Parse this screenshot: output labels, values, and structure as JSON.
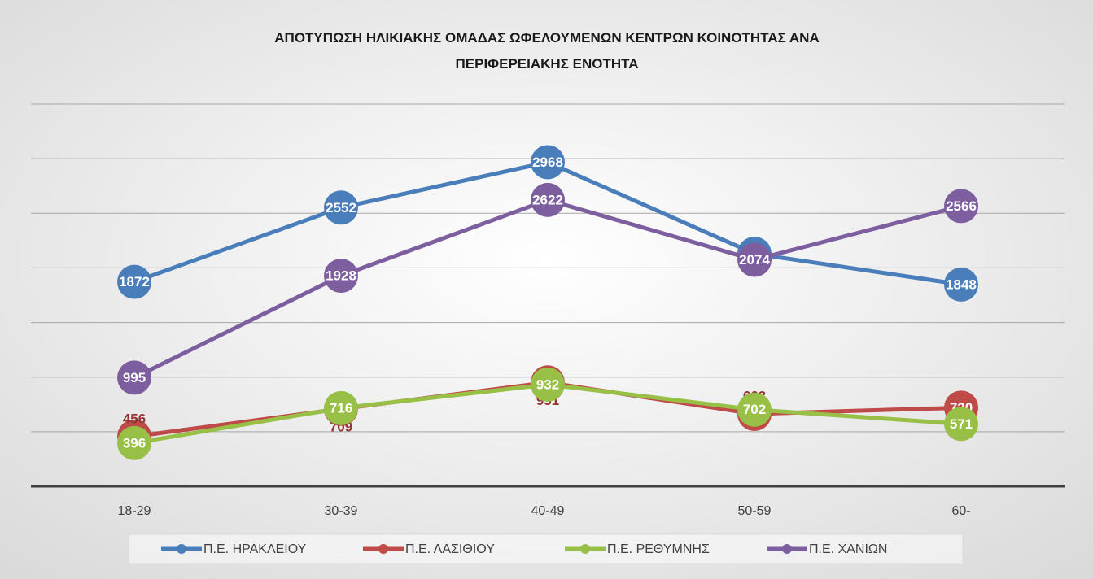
{
  "chart_data": {
    "type": "line",
    "title": "ΑΠΟΤΥΠΩΣΗ ΗΛΙΚΙΑΚΗΣ ΟΜΑΔΑΣ ΩΦΕΛΟΥΜΕΝΩΝ ΚΕΝΤΡΩΝ ΚΟΙΝΟΤΗΤΑΣ ΑΝΑ ΠΕΡΙΦΕΡΕΙΑΚΗΣ ΕΝΟΤΗΤΑ",
    "categories": [
      "18-29",
      "30-39",
      "40-49",
      "50-59",
      "60-"
    ],
    "series": [
      {
        "name": "Π.Ε. ΗΡΑΚΛΕΙΟΥ",
        "color": "#4a7ebb",
        "values": [
          1872,
          2552,
          2968,
          2130,
          1848
        ]
      },
      {
        "name": "Π.Ε. ΛΑΣΙΘΙΟΥ",
        "color": "#be4b48",
        "values": [
          456,
          709,
          951,
          663,
          720
        ]
      },
      {
        "name": "Π.Ε. ΡΕΘΥΜΝΗΣ",
        "color": "#98c047",
        "values": [
          396,
          716,
          932,
          702,
          571
        ]
      },
      {
        "name": "Π.Ε. ΧΑΝΙΩΝ",
        "color": "#7d5fa0",
        "values": [
          995,
          1928,
          2622,
          2074,
          2566
        ]
      }
    ],
    "ylim": [
      0,
      3500
    ],
    "yticks": [
      500,
      1000,
      1500,
      2000,
      2500,
      3000,
      3500
    ],
    "grid": true,
    "legend": "bottom"
  }
}
